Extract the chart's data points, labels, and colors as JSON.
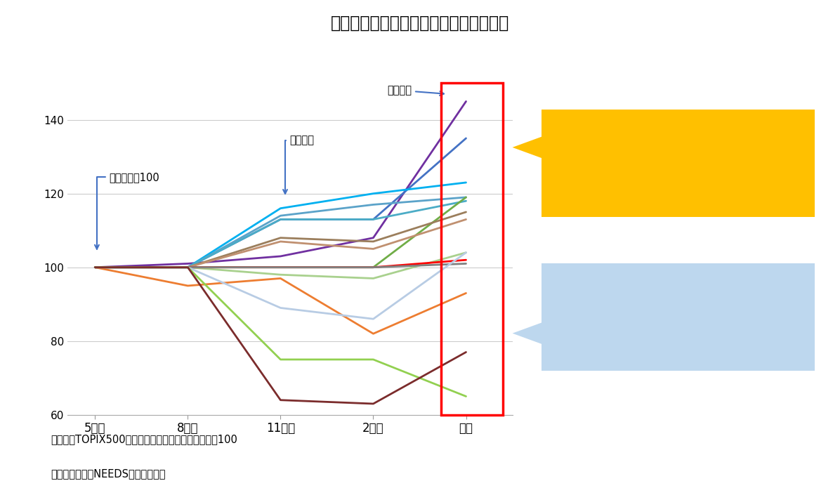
{
  "title_display": "【図２】期末実績の上方修正は恒例行事",
  "x_labels": [
    "5月末",
    "8月末",
    "11月末",
    "2月末",
    "実績"
  ],
  "ylim": [
    60,
    150
  ],
  "yticks": [
    60,
    80,
    100,
    120,
    140
  ],
  "note1": "（注）　TOPIX500のうち３月決算企業、期初予想＝100",
  "note2": "（資料）　日経NEEDSより筆者作成",
  "ann_kimatsu": "期末実績",
  "ann_chuukan": "中間決算",
  "ann_kiki": "期初予想＝100",
  "series": [
    {
      "color": "#7030A0",
      "values": [
        100,
        101,
        103,
        108,
        145
      ]
    },
    {
      "color": "#4472C4",
      "values": [
        100,
        100,
        113,
        113,
        135
      ]
    },
    {
      "color": "#00B0F0",
      "values": [
        100,
        100,
        116,
        120,
        123
      ]
    },
    {
      "color": "#5BA3C9",
      "values": [
        100,
        100,
        114,
        117,
        119
      ]
    },
    {
      "color": "#4BACC6",
      "values": [
        100,
        100,
        113,
        113,
        118
      ]
    },
    {
      "color": "#70AD47",
      "values": [
        100,
        100,
        100,
        100,
        119
      ]
    },
    {
      "color": "#9B7E5C",
      "values": [
        100,
        100,
        108,
        107,
        115
      ]
    },
    {
      "color": "#C09070",
      "values": [
        100,
        100,
        107,
        105,
        113
      ]
    },
    {
      "color": "#ED7D31",
      "values": [
        100,
        95,
        97,
        82,
        93
      ]
    },
    {
      "color": "#A9D18E",
      "values": [
        100,
        100,
        98,
        97,
        104
      ]
    },
    {
      "color": "#FF0000",
      "values": [
        100,
        100,
        100,
        100,
        102
      ]
    },
    {
      "color": "#808080",
      "values": [
        100,
        100,
        100,
        100,
        101
      ]
    },
    {
      "color": "#B8CCE4",
      "values": [
        100,
        100,
        89,
        86,
        104
      ]
    },
    {
      "color": "#92D050",
      "values": [
        100,
        100,
        75,
        75,
        65
      ]
    },
    {
      "color": "#7B2C2C",
      "values": [
        100,
        100,
        64,
        63,
        77
      ]
    }
  ],
  "bg_color": "#FFFFFF",
  "grid_color": "#CCCCCC",
  "rect_color": "#FF0000",
  "box1_bg": "#FFC000",
  "box2_bg": "#BDD7EE",
  "arrow_color": "#4472C4"
}
